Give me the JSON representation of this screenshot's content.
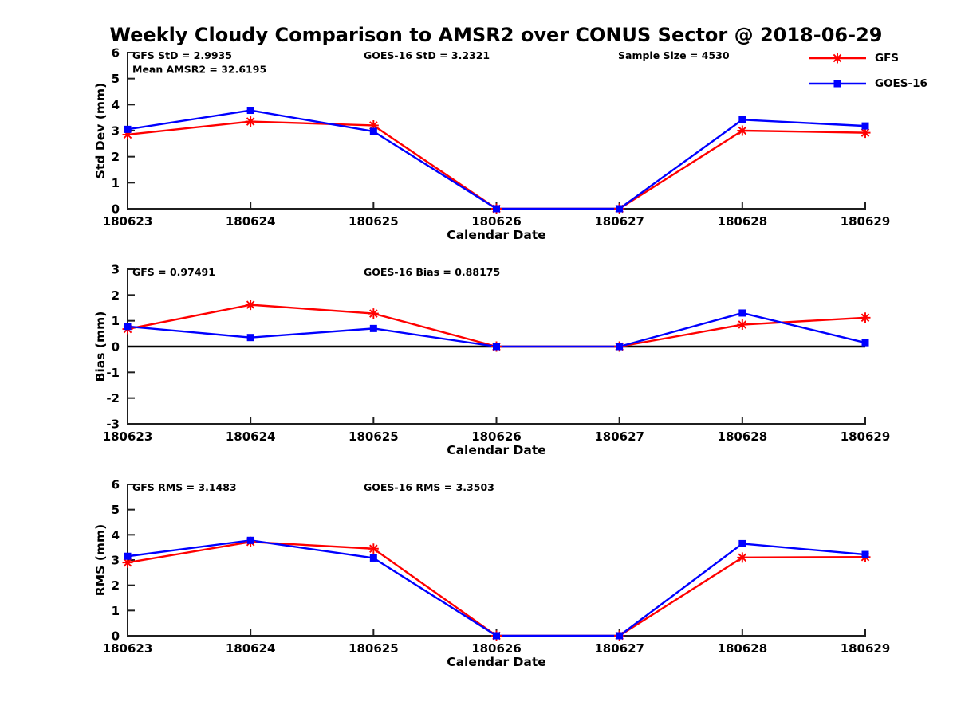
{
  "title": "Weekly Cloudy Comparison to AMSR2 over CONUS Sector @ 2018-06-29",
  "colors": {
    "gfs": "#ff0000",
    "goes16": "#0000ff",
    "axis": "#1f1f1f",
    "zero_line": "#000000"
  },
  "legend": {
    "items": [
      {
        "label": "GFS",
        "color": "#ff0000",
        "marker": "asterisk"
      },
      {
        "label": "GOES-16",
        "color": "#0000ff",
        "marker": "square"
      }
    ]
  },
  "chart_data": [
    {
      "type": "line",
      "name": "std-dev",
      "ylabel": "Std Dev (mm)",
      "xlabel": "Calendar Date",
      "ylim": [
        0,
        6
      ],
      "yticks": [
        0,
        1,
        2,
        3,
        4,
        5,
        6
      ],
      "grid": false,
      "legend_position": "top-right",
      "zero_line": false,
      "categories": [
        "180623",
        "180624",
        "180625",
        "180626",
        "180627",
        "180628",
        "180629"
      ],
      "series": [
        {
          "name": "GFS",
          "color": "#ff0000",
          "marker": "asterisk",
          "values": [
            2.85,
            3.35,
            3.2,
            0,
            0,
            3.0,
            2.92
          ]
        },
        {
          "name": "GOES-16",
          "color": "#0000ff",
          "marker": "square",
          "values": [
            3.05,
            3.78,
            2.97,
            0,
            0,
            3.42,
            3.18
          ]
        }
      ],
      "annotations": [
        {
          "text": "GFS StD = 2.9935",
          "col": 0,
          "row": 0
        },
        {
          "text": "Mean AMSR2 = 32.6195",
          "col": 0,
          "row": 1
        },
        {
          "text": "GOES-16 StD = 3.2321",
          "col": 1,
          "row": 0
        },
        {
          "text": "Sample Size = 4530",
          "col": 2,
          "row": 0
        }
      ]
    },
    {
      "type": "line",
      "name": "bias",
      "ylabel": "Bias (mm)",
      "xlabel": "Calendar Date",
      "ylim": [
        -3,
        3
      ],
      "yticks": [
        -3,
        -2,
        -1,
        0,
        1,
        2,
        3
      ],
      "grid": false,
      "zero_line": true,
      "categories": [
        "180623",
        "180624",
        "180625",
        "180626",
        "180627",
        "180628",
        "180629"
      ],
      "series": [
        {
          "name": "GFS",
          "color": "#ff0000",
          "marker": "asterisk",
          "values": [
            0.68,
            1.62,
            1.28,
            0,
            0,
            0.85,
            1.12
          ]
        },
        {
          "name": "GOES-16",
          "color": "#0000ff",
          "marker": "square",
          "values": [
            0.78,
            0.35,
            0.7,
            0,
            0,
            1.3,
            0.15
          ]
        }
      ],
      "annotations": [
        {
          "text": "GFS = 0.97491",
          "col": 0,
          "row": 0
        },
        {
          "text": "GOES-16 Bias  = 0.88175",
          "col": 1,
          "row": 0
        }
      ]
    },
    {
      "type": "line",
      "name": "rms",
      "ylabel": "RMS (mm)",
      "xlabel": "Calendar Date",
      "ylim": [
        0,
        6
      ],
      "yticks": [
        0,
        1,
        2,
        3,
        4,
        5,
        6
      ],
      "grid": false,
      "zero_line": false,
      "categories": [
        "180623",
        "180624",
        "180625",
        "180626",
        "180627",
        "180628",
        "180629"
      ],
      "series": [
        {
          "name": "GFS",
          "color": "#ff0000",
          "marker": "asterisk",
          "values": [
            2.9,
            3.72,
            3.45,
            0,
            0,
            3.1,
            3.12
          ]
        },
        {
          "name": "GOES-16",
          "color": "#0000ff",
          "marker": "square",
          "values": [
            3.15,
            3.78,
            3.08,
            0,
            0,
            3.65,
            3.22
          ]
        }
      ],
      "annotations": [
        {
          "text": "GFS RMS = 3.1483",
          "col": 0,
          "row": 0
        },
        {
          "text": "GOES-16 RMS = 3.3503",
          "col": 1,
          "row": 0
        }
      ]
    }
  ]
}
